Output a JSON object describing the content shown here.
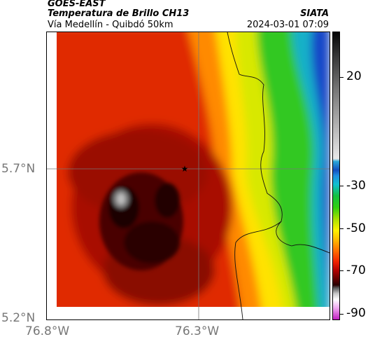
{
  "header": {
    "satellite": "GOES-EAST",
    "product": "Temperatura de Brillo CH13",
    "route": "Vía Medellín - Quibdó 50km",
    "organization": "SIATA",
    "timestamp": "2024-03-01 07:09"
  },
  "axes": {
    "y_ticks": [
      "5.7°N",
      "5.2°N"
    ],
    "x_ticks": [
      "76.8°W",
      "76.3°W"
    ]
  },
  "colorbar": {
    "ticks": [
      "20",
      "-30",
      "-50",
      "-70",
      "-90"
    ],
    "values": [
      20,
      -30,
      -50,
      -70,
      -90
    ]
  },
  "map": {
    "marker": "star",
    "colors": {
      "cold_core": "#1a0000",
      "deep_red": "#8a0a00",
      "red": "#e02a00",
      "orange": "#ff8a00",
      "yellow": "#ffef00",
      "green": "#3ad000",
      "blue": "#1446c8",
      "cloud_free": "#efefef"
    }
  }
}
